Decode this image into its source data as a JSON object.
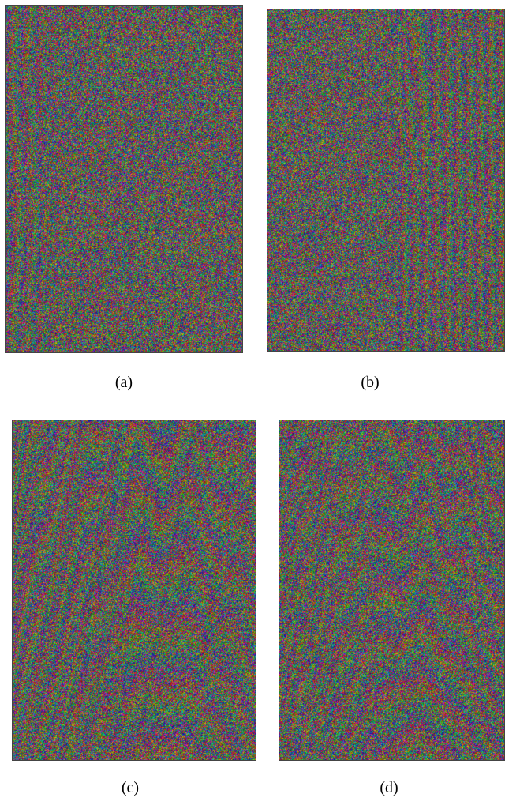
{
  "figure": {
    "panels": [
      {
        "id": "a",
        "label": "(a)",
        "pattern": "noise-sparse"
      },
      {
        "id": "b",
        "label": "(b)",
        "pattern": "vertical-fringes"
      },
      {
        "id": "c",
        "label": "(c)",
        "pattern": "arched-fringes"
      },
      {
        "id": "d",
        "label": "(d)",
        "pattern": "arched-fringes-dense"
      }
    ]
  }
}
